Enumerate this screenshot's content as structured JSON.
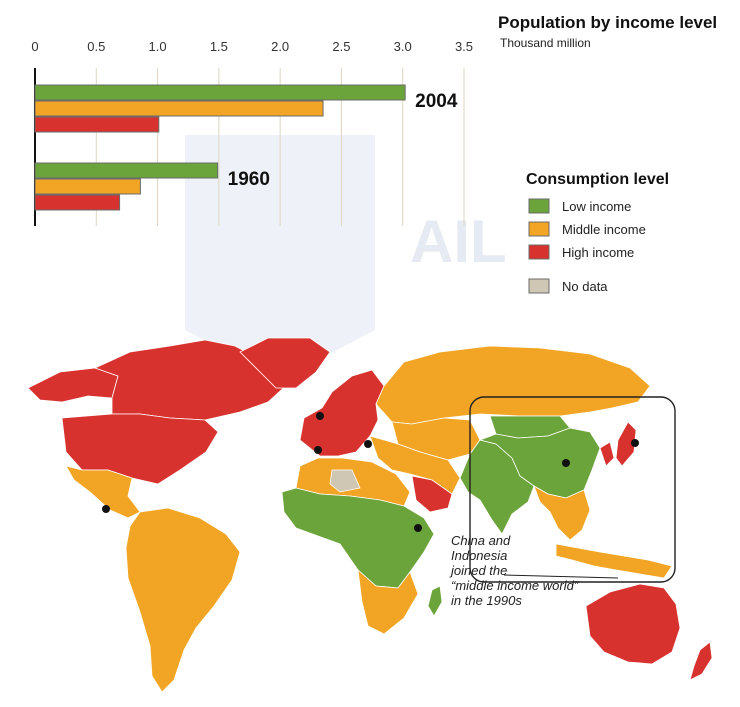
{
  "colors": {
    "low": "#6aa43a",
    "middle": "#f2a524",
    "high": "#d8322f",
    "nodata": "#cfc6b4",
    "ocean_bg": "#ffffff",
    "watermark": "#e6eaf2"
  },
  "watermark_text": "AIL",
  "chart_data": {
    "type": "bar",
    "title": "Population by income level",
    "subtitle": "Thousand million",
    "xlim": [
      0,
      3.5
    ],
    "ticks": [
      "0",
      "0.5",
      "1.0",
      "1.5",
      "2.0",
      "2.5",
      "3.0",
      "3.5"
    ],
    "tick_values": [
      0,
      0.5,
      1.0,
      1.5,
      2.0,
      2.5,
      3.0,
      3.5
    ],
    "categories": [
      "2004",
      "1960"
    ],
    "series": [
      {
        "name": "Low income",
        "color": "low",
        "values": [
          3.02,
          1.49
        ]
      },
      {
        "name": "Middle income",
        "color": "middle",
        "values": [
          2.35,
          0.86
        ]
      },
      {
        "name": "High income",
        "color": "high",
        "values": [
          1.01,
          0.69
        ]
      }
    ],
    "grid": true
  },
  "legend": {
    "title": "Consumption level",
    "items": [
      {
        "label": "Low income",
        "color": "low"
      },
      {
        "label": "Middle income",
        "color": "middle"
      },
      {
        "label": "High income",
        "color": "high"
      },
      {
        "label": "No data",
        "color": "nodata"
      }
    ]
  },
  "annotation": {
    "lines": [
      "China and",
      "Indonesia",
      "joined the",
      "“middle income world”",
      "in the 1990s"
    ]
  },
  "map": {
    "regions": [
      {
        "name": "greenland",
        "level": "high"
      },
      {
        "name": "canada",
        "level": "high"
      },
      {
        "name": "alaska",
        "level": "high"
      },
      {
        "name": "usa",
        "level": "high"
      },
      {
        "name": "mexico",
        "level": "middle"
      },
      {
        "name": "south-america",
        "level": "middle"
      },
      {
        "name": "europe",
        "level": "high"
      },
      {
        "name": "russia",
        "level": "middle"
      },
      {
        "name": "north-africa",
        "level": "middle"
      },
      {
        "name": "sub-saharan-africa",
        "level": "low"
      },
      {
        "name": "southern-africa",
        "level": "middle"
      },
      {
        "name": "madagascar",
        "level": "low"
      },
      {
        "name": "middle-east",
        "level": "middle"
      },
      {
        "name": "saudi-arabia",
        "level": "high"
      },
      {
        "name": "western-sahara",
        "level": "nodata"
      },
      {
        "name": "central-asia",
        "level": "middle"
      },
      {
        "name": "south-asia",
        "level": "low"
      },
      {
        "name": "china",
        "level": "low"
      },
      {
        "name": "mongolia",
        "level": "low"
      },
      {
        "name": "japan",
        "level": "high"
      },
      {
        "name": "korea",
        "level": "high"
      },
      {
        "name": "southeast-asia",
        "level": "middle"
      },
      {
        "name": "indonesia",
        "level": "middle"
      },
      {
        "name": "australia",
        "level": "high"
      },
      {
        "name": "new-zealand",
        "level": "high"
      }
    ]
  }
}
